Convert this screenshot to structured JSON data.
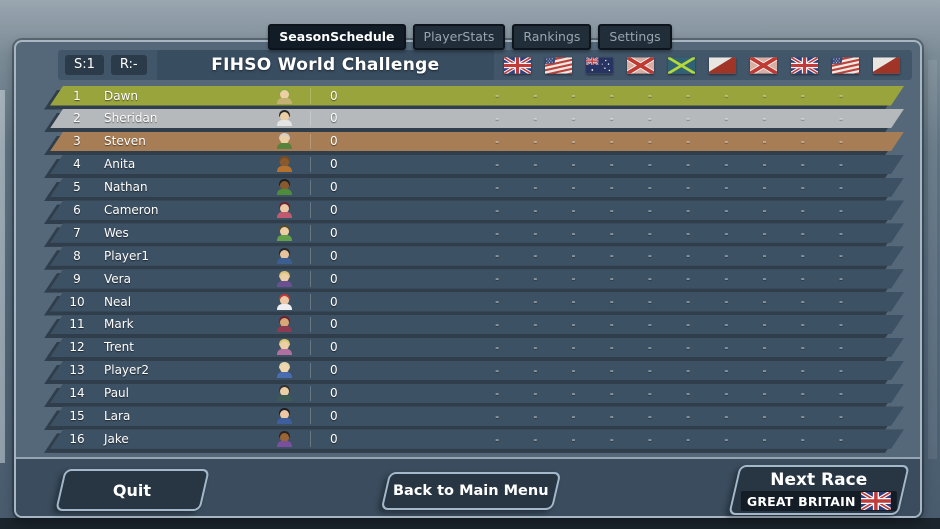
{
  "tabs": [
    {
      "label": "SeasonSchedule",
      "active": true
    },
    {
      "label": "PlayerStats",
      "active": false
    },
    {
      "label": "Rankings",
      "active": false
    },
    {
      "label": "Settings",
      "active": false
    }
  ],
  "header": {
    "season_indicator": "S:1",
    "race_indicator": "R:-",
    "title": "FIHSO World Challenge",
    "flags": [
      "gb",
      "us",
      "au",
      "saltire-red",
      "saltire-green",
      "diag-red",
      "saltire-red",
      "gb",
      "us",
      "diag-red"
    ]
  },
  "colors": {
    "gold": "#9aa43c",
    "silver": "#b6b9bb",
    "bronze": "#a67d55",
    "row": "#3d5164"
  },
  "standings": {
    "players": [
      {
        "rank": "1",
        "name": "Dawn",
        "points": "0",
        "medal": "gold",
        "avatar": {
          "hair": "#86a83f",
          "skin": "#eccfa4",
          "shirt": "#c3b173"
        },
        "results": [
          "-",
          "-",
          "-",
          "-",
          "-",
          "-",
          "-",
          "-",
          "-",
          "-"
        ]
      },
      {
        "rank": "2",
        "name": "Sheridan",
        "points": "0",
        "medal": "silver",
        "avatar": {
          "hair": "#2b2b2b",
          "skin": "#eccfa4",
          "shirt": "#e3e3e3"
        },
        "results": [
          "-",
          "-",
          "-",
          "-",
          "-",
          "-",
          "-",
          "-",
          "-",
          "-"
        ]
      },
      {
        "rank": "3",
        "name": "Steven",
        "points": "0",
        "medal": "bronze",
        "avatar": {
          "hair": "#cfcfcf",
          "skin": "#eccfa4",
          "shirt": "#57833c"
        },
        "results": [
          "-",
          "-",
          "-",
          "-",
          "-",
          "-",
          "-",
          "-",
          "-",
          "-"
        ]
      },
      {
        "rank": "4",
        "name": "Anita",
        "points": "0",
        "medal": "none",
        "avatar": {
          "hair": "#7a4a21",
          "skin": "#8a5a2e",
          "shirt": "#b5722e"
        },
        "results": [
          "-",
          "-",
          "-",
          "-",
          "-",
          "-",
          "-",
          "-",
          "-",
          "-"
        ]
      },
      {
        "rank": "5",
        "name": "Nathan",
        "points": "0",
        "medal": "none",
        "avatar": {
          "hair": "#1f1f1f",
          "skin": "#8a5a2e",
          "shirt": "#4e8b3a"
        },
        "results": [
          "-",
          "-",
          "-",
          "-",
          "-",
          "-",
          "-",
          "-",
          "-",
          "-"
        ]
      },
      {
        "rank": "6",
        "name": "Cameron",
        "points": "0",
        "medal": "none",
        "avatar": {
          "hair": "#6e2430",
          "skin": "#ecc9a4",
          "shirt": "#c05a70"
        },
        "results": [
          "-",
          "-",
          "-",
          "-",
          "-",
          "-",
          "-",
          "-",
          "-",
          "-"
        ]
      },
      {
        "rank": "7",
        "name": "Wes",
        "points": "0",
        "medal": "none",
        "avatar": {
          "hair": "#5a4a28",
          "skin": "#eccfa4",
          "shirt": "#62a04a"
        },
        "results": [
          "-",
          "-",
          "-",
          "-",
          "-",
          "-",
          "-",
          "-",
          "-",
          "-"
        ]
      },
      {
        "rank": "8",
        "name": "Player1",
        "points": "0",
        "medal": "none",
        "avatar": {
          "hair": "#26262b",
          "skin": "#e8c49c",
          "shirt": "#3c5f92"
        },
        "results": [
          "-",
          "-",
          "-",
          "-",
          "-",
          "-",
          "-",
          "-",
          "-",
          "-"
        ]
      },
      {
        "rank": "9",
        "name": "Vera",
        "points": "0",
        "medal": "none",
        "avatar": {
          "hair": "#d9c273",
          "skin": "#eccfa4",
          "shirt": "#6b4f93"
        },
        "results": [
          "-",
          "-",
          "-",
          "-",
          "-",
          "-",
          "-",
          "-",
          "-",
          "-"
        ]
      },
      {
        "rank": "10",
        "name": "Neal",
        "points": "0",
        "medal": "none",
        "avatar": {
          "hair": "#c23a34",
          "skin": "#ecc9a4",
          "shirt": "#f0eeee"
        },
        "results": [
          "-",
          "-",
          "-",
          "-",
          "-",
          "-",
          "-",
          "-",
          "-",
          "-"
        ]
      },
      {
        "rank": "11",
        "name": "Mark",
        "points": "0",
        "medal": "none",
        "avatar": {
          "hair": "#6b2030",
          "skin": "#d9a876",
          "shirt": "#8e3a50"
        },
        "results": [
          "-",
          "-",
          "-",
          "-",
          "-",
          "-",
          "-",
          "-",
          "-",
          "-"
        ]
      },
      {
        "rank": "12",
        "name": "Trent",
        "points": "0",
        "medal": "none",
        "avatar": {
          "hair": "#d8c86e",
          "skin": "#eccfa4",
          "shirt": "#b070a0"
        },
        "results": [
          "-",
          "-",
          "-",
          "-",
          "-",
          "-",
          "-",
          "-",
          "-",
          "-"
        ]
      },
      {
        "rank": "13",
        "name": "Player2",
        "points": "0",
        "medal": "none",
        "avatar": {
          "hair": "#e3d6a8",
          "skin": "#f0d6ae",
          "shirt": "#4a6cb0"
        },
        "results": [
          "-",
          "-",
          "-",
          "-",
          "-",
          "-",
          "-",
          "-",
          "-",
          "-"
        ]
      },
      {
        "rank": "14",
        "name": "Paul",
        "points": "0",
        "medal": "none",
        "avatar": {
          "hair": "#33312e",
          "skin": "#eccfa4",
          "shirt": "#3d5a55"
        },
        "results": [
          "-",
          "-",
          "-",
          "-",
          "-",
          "-",
          "-",
          "-",
          "-",
          "-"
        ]
      },
      {
        "rank": "15",
        "name": "Lara",
        "points": "0",
        "medal": "none",
        "avatar": {
          "hair": "#1d1d22",
          "skin": "#ecc9a4",
          "shirt": "#3e5f9e"
        },
        "results": [
          "-",
          "-",
          "-",
          "-",
          "-",
          "-",
          "-",
          "-",
          "-",
          "-"
        ]
      },
      {
        "rank": "16",
        "name": "Jake",
        "points": "0",
        "medal": "none",
        "avatar": {
          "hair": "#2a2220",
          "skin": "#9a6435",
          "shirt": "#7a4fa0"
        },
        "results": [
          "-",
          "-",
          "-",
          "-",
          "-",
          "-",
          "-",
          "-",
          "-",
          "-"
        ]
      }
    ]
  },
  "footer": {
    "quit_label": "Quit",
    "back_label": "Back to Main Menu",
    "next_label": "Next Race",
    "next_sub_label": "GREAT BRITAIN",
    "next_flag": "gb"
  }
}
